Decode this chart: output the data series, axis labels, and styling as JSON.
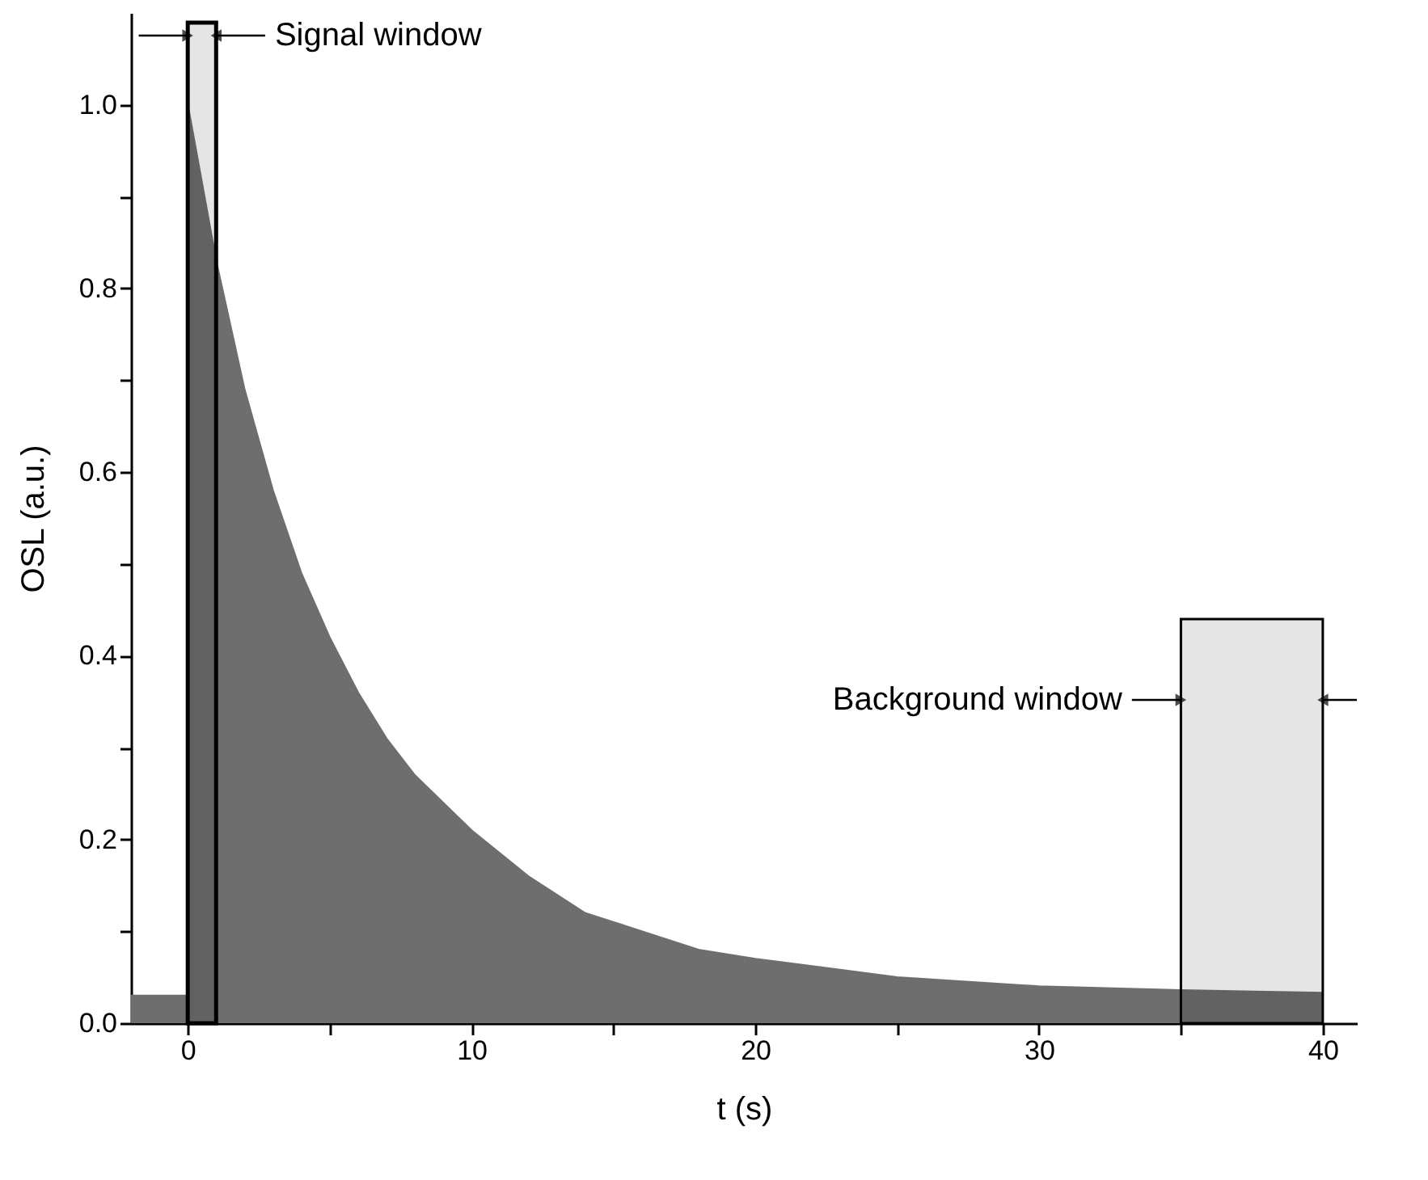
{
  "chart_data": {
    "type": "area",
    "xlabel": "t (s)",
    "ylabel": "OSL (a.u.)",
    "xlim": [
      -2,
      41.2
    ],
    "ylim": [
      0,
      1.1
    ],
    "xticks": [
      0,
      {
        "value": 5,
        "label": null
      },
      10,
      {
        "value": 15,
        "label": null
      },
      20,
      {
        "value": 25,
        "label": null
      },
      30,
      {
        "value": 35,
        "label": null
      },
      40
    ],
    "yticks": [
      {
        "value": 0,
        "label": "0.0"
      },
      {
        "value": 0.1,
        "label": null
      },
      {
        "value": 0.2,
        "label": "0.2"
      },
      {
        "value": 0.3,
        "label": null
      },
      {
        "value": 0.4,
        "label": "0.4"
      },
      {
        "value": 0.5,
        "label": null
      },
      {
        "value": 0.6,
        "label": "0.6"
      },
      {
        "value": 0.7,
        "label": null
      },
      {
        "value": 0.8,
        "label": "0.8"
      },
      {
        "value": 0.9,
        "label": null
      },
      {
        "value": 1,
        "label": "1.0"
      }
    ],
    "series": [
      {
        "color": "#6e6e6e",
        "x": [
          -2,
          0,
          0,
          1,
          2,
          3,
          4,
          5,
          6,
          7,
          8,
          10,
          12,
          14,
          16,
          18,
          20,
          25,
          30,
          35,
          40
        ],
        "values": [
          0.03,
          0.03,
          1.0,
          0.83,
          0.69,
          0.58,
          0.49,
          0.42,
          0.36,
          0.31,
          0.27,
          0.21,
          0.16,
          0.12,
          0.1,
          0.08,
          0.07,
          0.05,
          0.04,
          0.036,
          0.033
        ]
      }
    ],
    "bands": [
      {
        "axis": "x",
        "from": 0,
        "to": 1,
        "label": "Signal window"
      },
      {
        "axis": "x",
        "from": 35,
        "to": 40,
        "label": "Background window"
      }
    ],
    "grid": false
  }
}
